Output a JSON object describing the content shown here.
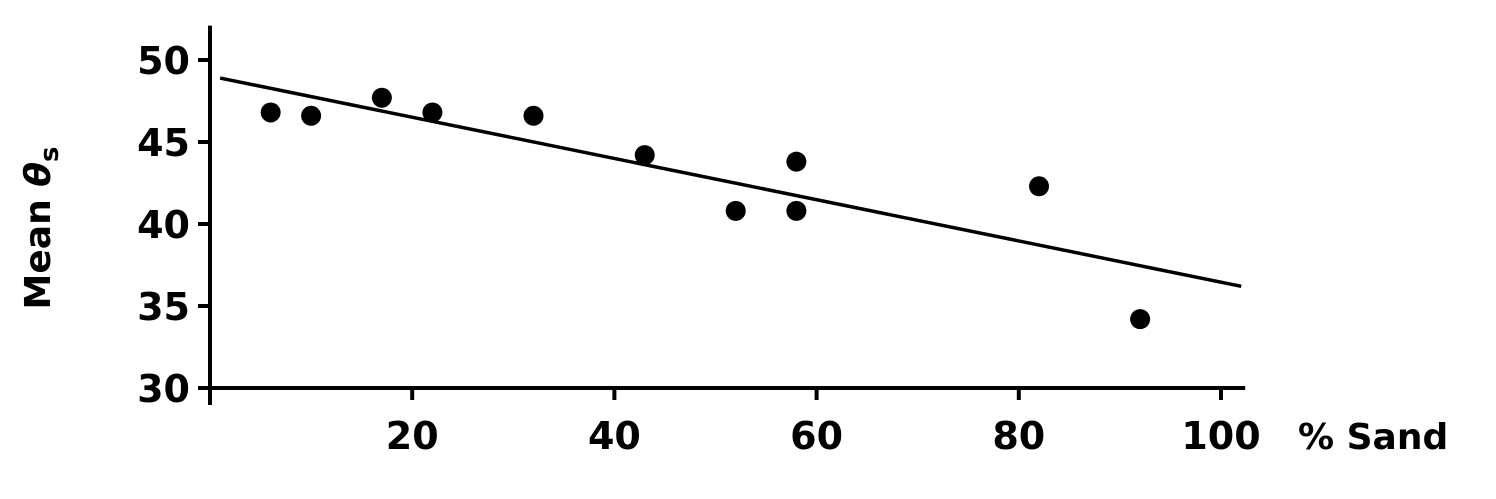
{
  "chart_data": {
    "type": "scatter",
    "title": "",
    "xlabel": "% Sand",
    "ylabel": "Mean θs",
    "ylabel_parts": {
      "main": "Mean ",
      "symbol": "θ",
      "subscript": "s"
    },
    "xlim": [
      0,
      102
    ],
    "ylim": [
      30,
      51
    ],
    "x_ticks": [
      20,
      40,
      60,
      80,
      100
    ],
    "y_ticks": [
      30,
      35,
      40,
      45,
      50
    ],
    "grid": false,
    "legend": "none",
    "points": [
      {
        "x": 6,
        "y": 46.8
      },
      {
        "x": 10,
        "y": 46.6
      },
      {
        "x": 17,
        "y": 47.7
      },
      {
        "x": 22,
        "y": 46.8
      },
      {
        "x": 32,
        "y": 46.6
      },
      {
        "x": 43,
        "y": 44.2
      },
      {
        "x": 52,
        "y": 40.8
      },
      {
        "x": 58,
        "y": 43.8
      },
      {
        "x": 58,
        "y": 40.8
      },
      {
        "x": 82,
        "y": 42.3
      },
      {
        "x": 92,
        "y": 34.2
      }
    ],
    "fit_line": {
      "x": [
        1,
        102
      ],
      "y": [
        48.9,
        36.2
      ]
    }
  }
}
